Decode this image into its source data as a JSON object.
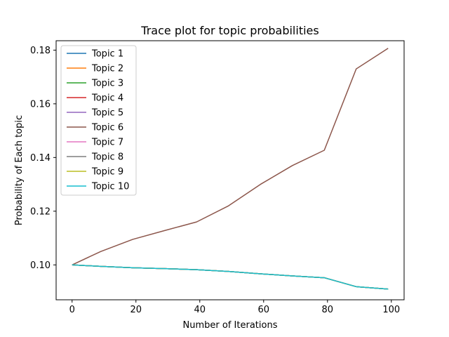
{
  "chart_data": {
    "type": "line",
    "title": "Trace plot for topic probabilities",
    "xlabel": "Number of Iterations",
    "ylabel": "Probability of Each topic",
    "xlim": [
      -5,
      104
    ],
    "ylim": [
      0.087,
      0.1835
    ],
    "x_ticks": [
      0,
      20,
      40,
      60,
      80,
      100
    ],
    "y_ticks": [
      0.1,
      0.12,
      0.14,
      0.16,
      0.18
    ],
    "x_tick_labels": [
      "0",
      "20",
      "40",
      "60",
      "80",
      "100"
    ],
    "y_tick_labels": [
      "0.10",
      "0.12",
      "0.14",
      "0.16",
      "0.18"
    ],
    "grid": false,
    "legend_position": "upper-left",
    "x": [
      0,
      9,
      19,
      29,
      39,
      49,
      59,
      69,
      79,
      89,
      99
    ],
    "series": [
      {
        "name": "Topic 1",
        "color": "#1f77b4",
        "values": [
          0.1,
          0.09944,
          0.09894,
          0.09861,
          0.09822,
          0.09756,
          0.09667,
          0.09589,
          0.09522,
          0.09189,
          0.091
        ]
      },
      {
        "name": "Topic 2",
        "color": "#ff7f0e",
        "values": [
          0.1,
          0.09944,
          0.09894,
          0.09861,
          0.09822,
          0.09756,
          0.09667,
          0.09589,
          0.09522,
          0.09189,
          0.091
        ]
      },
      {
        "name": "Topic 3",
        "color": "#2ca02c",
        "values": [
          0.1,
          0.09944,
          0.09894,
          0.09861,
          0.09822,
          0.09756,
          0.09667,
          0.09589,
          0.09522,
          0.09189,
          0.091
        ]
      },
      {
        "name": "Topic 4",
        "color": "#d62728",
        "values": [
          0.1,
          0.09944,
          0.09894,
          0.09861,
          0.09822,
          0.09756,
          0.09667,
          0.09589,
          0.09522,
          0.09189,
          0.091
        ]
      },
      {
        "name": "Topic 5",
        "color": "#9467bd",
        "values": [
          0.1,
          0.09944,
          0.09894,
          0.09861,
          0.09822,
          0.09756,
          0.09667,
          0.09589,
          0.09522,
          0.09189,
          0.091
        ]
      },
      {
        "name": "Topic 6",
        "color": "#8c564b",
        "values": [
          0.1,
          0.105,
          0.1095,
          0.1128,
          0.116,
          0.122,
          0.13,
          0.137,
          0.1427,
          0.173,
          0.1807
        ]
      },
      {
        "name": "Topic 7",
        "color": "#e377c2",
        "values": [
          0.1,
          0.09944,
          0.09894,
          0.09861,
          0.09822,
          0.09756,
          0.09667,
          0.09589,
          0.09522,
          0.09189,
          0.091
        ]
      },
      {
        "name": "Topic 8",
        "color": "#7f7f7f",
        "values": [
          0.1,
          0.09944,
          0.09894,
          0.09861,
          0.09822,
          0.09756,
          0.09667,
          0.09589,
          0.09522,
          0.09189,
          0.091
        ]
      },
      {
        "name": "Topic 9",
        "color": "#bcbd22",
        "values": [
          0.1,
          0.09944,
          0.09894,
          0.09861,
          0.09822,
          0.09756,
          0.09667,
          0.09589,
          0.09522,
          0.09189,
          0.091
        ]
      },
      {
        "name": "Topic 10",
        "color": "#17becf",
        "values": [
          0.1,
          0.09944,
          0.09894,
          0.09861,
          0.09822,
          0.09756,
          0.09667,
          0.09589,
          0.09522,
          0.09189,
          0.091
        ]
      }
    ]
  }
}
